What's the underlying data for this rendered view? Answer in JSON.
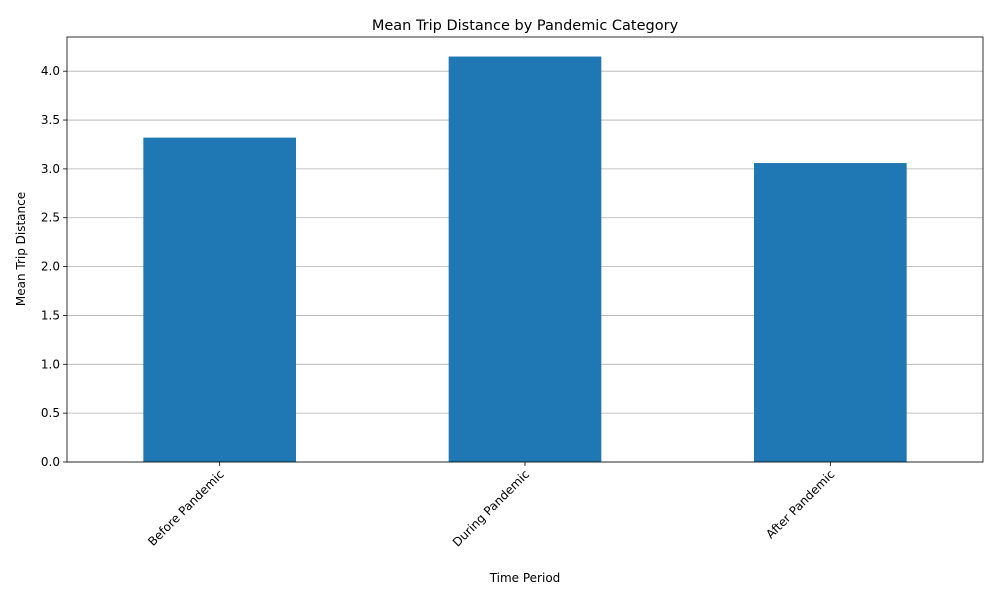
{
  "chart_data": {
    "type": "bar",
    "title": "Mean Trip Distance by Pandemic Category",
    "xlabel": "Time Period",
    "ylabel": "Mean Trip Distance",
    "categories": [
      "Before Pandemic",
      "During Pandemic",
      "After Pandemic"
    ],
    "values": [
      3.32,
      4.15,
      3.06
    ],
    "ylim": [
      0,
      4.35
    ],
    "yticks": [
      "0.0",
      "0.5",
      "1.0",
      "1.5",
      "2.0",
      "2.5",
      "3.0",
      "3.5",
      "4.0"
    ],
    "grid": "horizontal",
    "bar_color": "#1f77b4",
    "xtick_rotation": "45 degrees"
  }
}
